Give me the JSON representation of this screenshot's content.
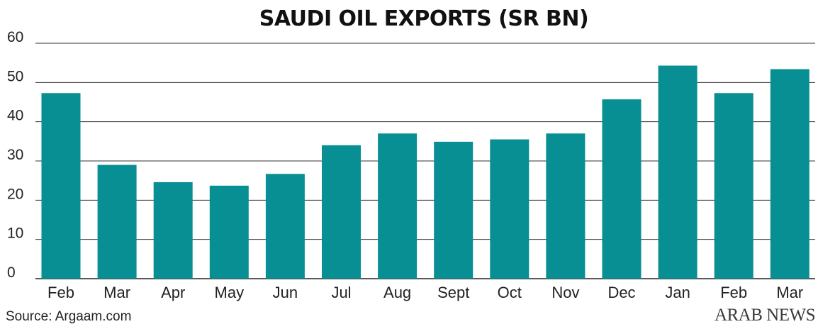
{
  "chart_data": {
    "type": "bar",
    "title": "SAUDI OIL EXPORTS (SR BN)",
    "categories": [
      "Feb",
      "Mar",
      "Apr",
      "May",
      "Jun",
      "Jul",
      "Aug",
      "Sept",
      "Oct",
      "Nov",
      "Dec",
      "Jan",
      "Feb",
      "Mar"
    ],
    "values": [
      47.3,
      29.0,
      24.6,
      23.7,
      26.7,
      34.0,
      37.0,
      34.9,
      35.5,
      37.0,
      45.7,
      54.3,
      47.3,
      53.4
    ],
    "ylim": [
      0,
      60
    ],
    "yticks": [
      0,
      10,
      20,
      30,
      40,
      50,
      60
    ],
    "grid": true,
    "bar_color": "#088f93",
    "xlabel": "",
    "ylabel": ""
  },
  "footer": {
    "source": "Source: Argaam.com",
    "brand": "ARAB NEWS"
  }
}
